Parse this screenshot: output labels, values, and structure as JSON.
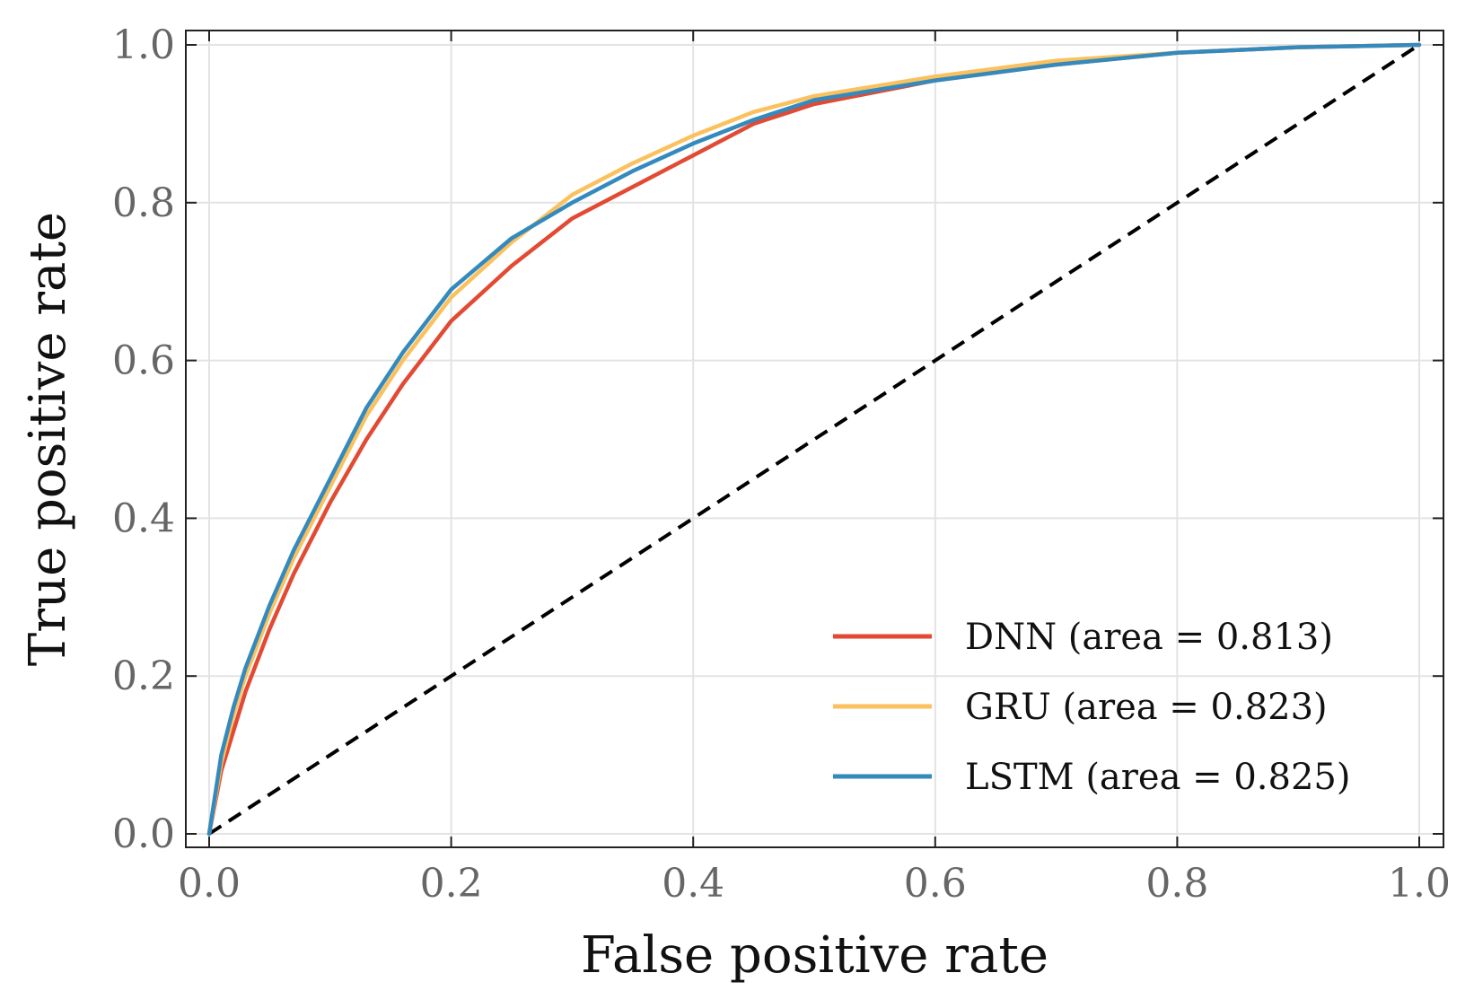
{
  "chart_data": {
    "type": "line",
    "title": "",
    "xlabel": "False positive rate",
    "ylabel": "True positive rate",
    "xlim": [
      0.0,
      1.0
    ],
    "ylim": [
      0.0,
      1.0
    ],
    "xticks": [
      "0.0",
      "0.2",
      "0.4",
      "0.6",
      "0.8",
      "1.0"
    ],
    "yticks": [
      "0.0",
      "0.2",
      "0.4",
      "0.6",
      "0.8",
      "1.0"
    ],
    "grid": true,
    "legend_position": "lower-right",
    "series": [
      {
        "name": "DNN (area = 0.813)",
        "color": "#e24a33",
        "x": [
          0.0,
          0.01,
          0.02,
          0.03,
          0.05,
          0.07,
          0.1,
          0.13,
          0.16,
          0.2,
          0.25,
          0.3,
          0.35,
          0.4,
          0.45,
          0.5,
          0.6,
          0.7,
          0.8,
          0.9,
          1.0
        ],
        "y": [
          0.0,
          0.08,
          0.13,
          0.18,
          0.26,
          0.33,
          0.42,
          0.5,
          0.57,
          0.65,
          0.72,
          0.78,
          0.82,
          0.86,
          0.9,
          0.925,
          0.955,
          0.975,
          0.99,
          0.997,
          1.0
        ]
      },
      {
        "name": "GRU (area = 0.823)",
        "color": "#fbc15e",
        "x": [
          0.0,
          0.01,
          0.02,
          0.03,
          0.05,
          0.07,
          0.1,
          0.13,
          0.16,
          0.2,
          0.25,
          0.3,
          0.35,
          0.4,
          0.45,
          0.5,
          0.6,
          0.7,
          0.8,
          0.9,
          1.0
        ],
        "y": [
          0.0,
          0.09,
          0.15,
          0.2,
          0.28,
          0.35,
          0.44,
          0.53,
          0.6,
          0.68,
          0.75,
          0.81,
          0.85,
          0.885,
          0.915,
          0.935,
          0.96,
          0.98,
          0.99,
          0.997,
          1.0
        ]
      },
      {
        "name": "LSTM (area = 0.825)",
        "color": "#348abd",
        "x": [
          0.0,
          0.01,
          0.02,
          0.03,
          0.05,
          0.07,
          0.1,
          0.13,
          0.16,
          0.2,
          0.25,
          0.3,
          0.35,
          0.4,
          0.45,
          0.5,
          0.6,
          0.7,
          0.8,
          0.9,
          1.0
        ],
        "y": [
          0.0,
          0.1,
          0.16,
          0.21,
          0.29,
          0.36,
          0.45,
          0.54,
          0.61,
          0.69,
          0.755,
          0.8,
          0.84,
          0.875,
          0.905,
          0.93,
          0.955,
          0.975,
          0.99,
          0.997,
          1.0
        ]
      }
    ],
    "reference_line": {
      "name": "chance",
      "color": "#000000",
      "style": "dashed",
      "x": [
        0.0,
        1.0
      ],
      "y": [
        0.0,
        1.0
      ]
    }
  }
}
